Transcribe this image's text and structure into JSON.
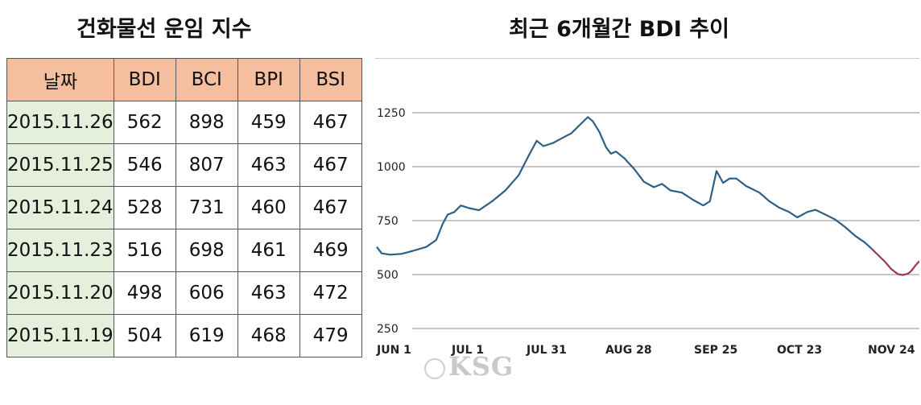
{
  "table": {
    "title": "건화물선 운임 지수",
    "headers": [
      "날짜",
      "BDI",
      "BCI",
      "BPI",
      "BSI"
    ],
    "rows": [
      [
        "2015.11.26",
        "562",
        "898",
        "459",
        "467"
      ],
      [
        "2015.11.25",
        "546",
        "807",
        "463",
        "467"
      ],
      [
        "2015.11.24",
        "528",
        "731",
        "460",
        "467"
      ],
      [
        "2015.11.23",
        "516",
        "698",
        "461",
        "469"
      ],
      [
        "2015.11.20",
        "498",
        "606",
        "463",
        "472"
      ],
      [
        "2015.11.19",
        "504",
        "619",
        "468",
        "479"
      ]
    ]
  },
  "watermark": "KSG",
  "chart_data": {
    "type": "line",
    "title": "최근 6개월간 BDI 추이",
    "xlabel": "",
    "ylabel": "",
    "ylim": [
      250,
      1250
    ],
    "yticks": [
      1250,
      1000,
      750,
      500,
      250
    ],
    "xticks": [
      "JUN 1",
      "JUL 1",
      "JUL 31",
      "AUG 28",
      "SEP 25",
      "OCT 23",
      "NOV 24"
    ],
    "grid": "horizontal",
    "colors": {
      "main": "#2d5f86",
      "recent": "#a0325e"
    },
    "series": [
      {
        "values": [
          [
            0,
            628
          ],
          [
            3,
            598
          ],
          [
            8,
            592
          ],
          [
            15,
            596
          ],
          [
            22,
            610
          ],
          [
            30,
            628
          ],
          [
            36,
            660
          ],
          [
            40,
            735
          ],
          [
            43,
            778
          ],
          [
            47,
            790
          ],
          [
            51,
            820
          ],
          [
            56,
            808
          ],
          [
            62,
            798
          ],
          [
            70,
            840
          ],
          [
            78,
            890
          ],
          [
            86,
            960
          ],
          [
            92,
            1050
          ],
          [
            97,
            1120
          ],
          [
            101,
            1095
          ],
          [
            107,
            1110
          ],
          [
            113,
            1135
          ],
          [
            118,
            1155
          ],
          [
            124,
            1200
          ],
          [
            128,
            1230
          ],
          [
            131,
            1210
          ],
          [
            135,
            1160
          ],
          [
            139,
            1090
          ],
          [
            142,
            1060
          ],
          [
            145,
            1070
          ],
          [
            150,
            1040
          ],
          [
            156,
            990
          ],
          [
            162,
            930
          ],
          [
            168,
            905
          ],
          [
            173,
            920
          ],
          [
            178,
            890
          ],
          [
            185,
            880
          ],
          [
            192,
            845
          ],
          [
            198,
            820
          ],
          [
            202,
            840
          ],
          [
            206,
            980
          ],
          [
            210,
            925
          ],
          [
            214,
            945
          ],
          [
            218,
            945
          ],
          [
            224,
            910
          ],
          [
            232,
            880
          ],
          [
            238,
            840
          ],
          [
            244,
            810
          ],
          [
            250,
            790
          ],
          [
            255,
            765
          ],
          [
            261,
            790
          ],
          [
            266,
            800
          ],
          [
            272,
            778
          ],
          [
            278,
            755
          ],
          [
            284,
            720
          ],
          [
            290,
            680
          ],
          [
            296,
            648
          ],
          [
            300,
            620
          ]
        ]
      },
      {
        "values": [
          [
            300,
            620
          ],
          [
            304,
            590
          ],
          [
            308,
            560
          ],
          [
            312,
            525
          ],
          [
            316,
            502
          ],
          [
            319,
            498
          ],
          [
            322,
            504
          ],
          [
            324,
            516
          ],
          [
            327,
            546
          ],
          [
            329,
            562
          ]
        ]
      }
    ]
  }
}
